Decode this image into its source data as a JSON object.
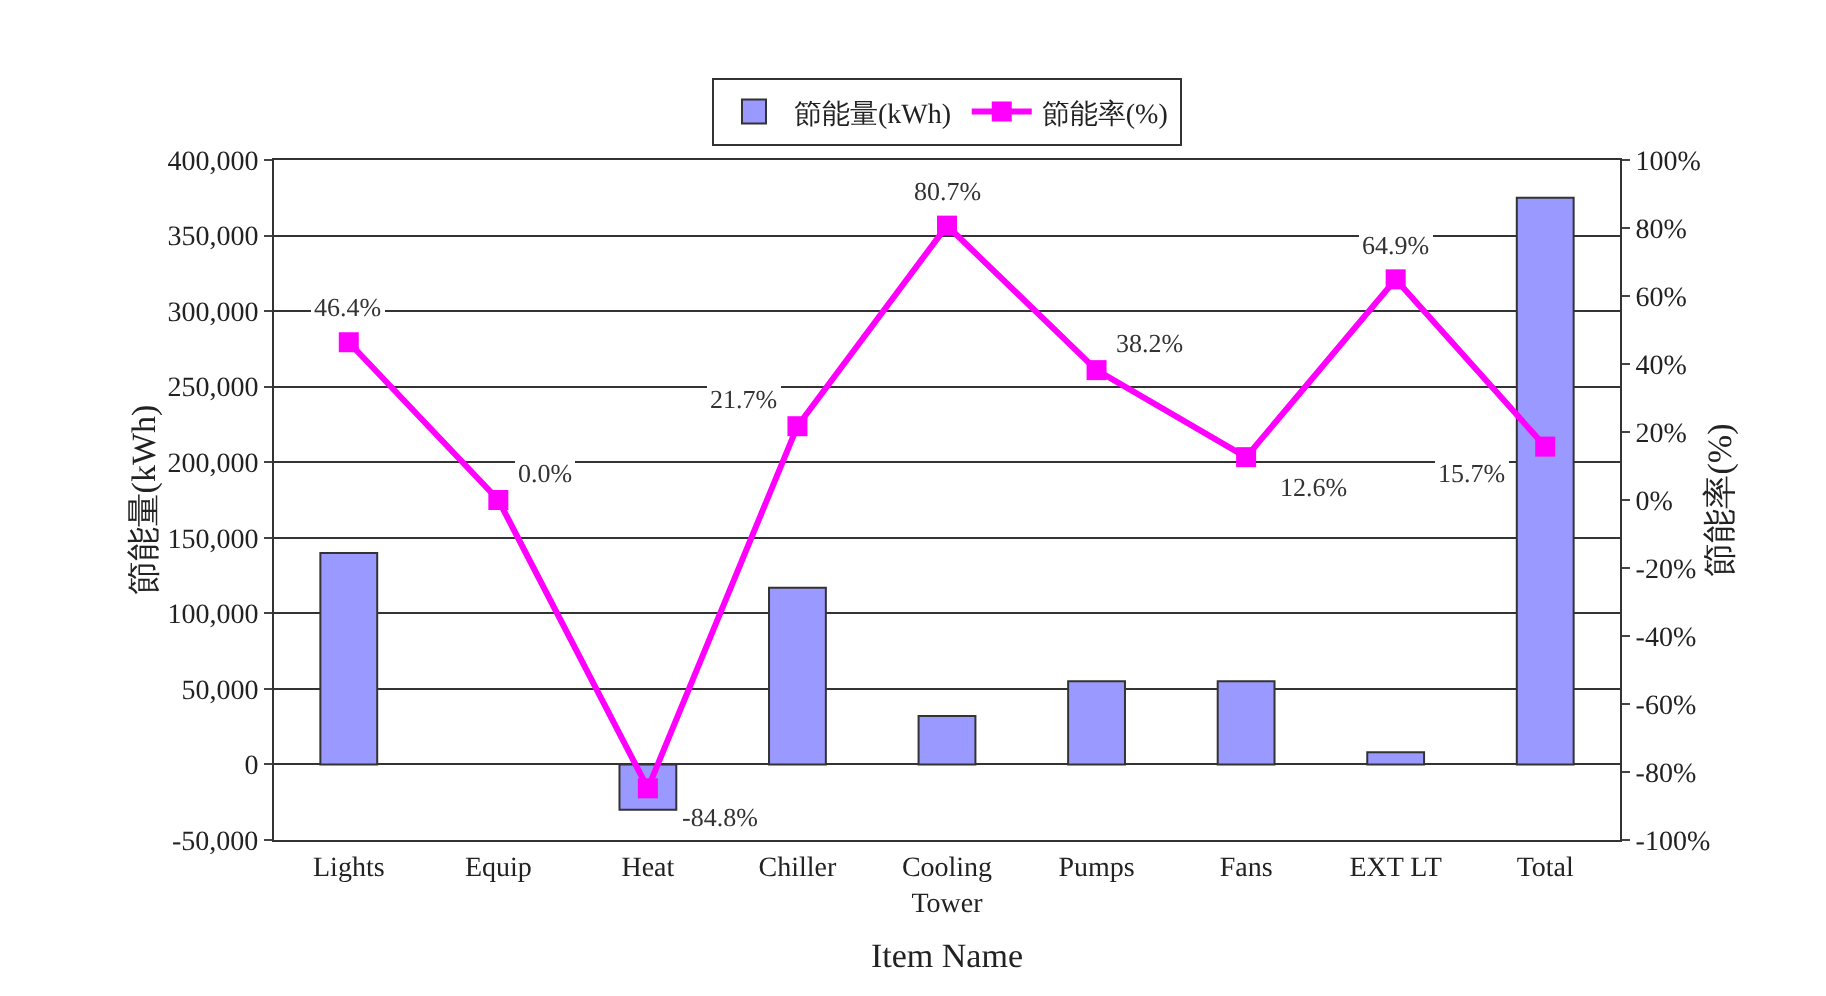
{
  "chart_data": {
    "type": "bar",
    "xlabel": "Item Name",
    "ylabel": "節能量(kWh)",
    "y2label": "節能率(%)",
    "categories": [
      "Lights",
      "Equip",
      "Heat",
      "Chiller",
      "Cooling Tower",
      "Pumps",
      "Fans",
      "EXT LT",
      "Total"
    ],
    "series": [
      {
        "name": "節能量(kWh)",
        "color": "#9999ff",
        "values": [
          140000,
          0,
          -30000,
          117000,
          32000,
          55000,
          55000,
          8000,
          375000
        ]
      },
      {
        "name": "節能率(%)",
        "type": "line",
        "axis": "y2",
        "color": "#ff00ff",
        "marker": "square",
        "values": [
          46.4,
          0.0,
          -84.8,
          21.7,
          80.7,
          38.2,
          12.6,
          64.9,
          15.7
        ],
        "value_labels": [
          "46.4%",
          "0.0%",
          "-84.8%",
          "21.7%",
          "80.7%",
          "38.2%",
          "12.6%",
          "64.9%",
          "15.7%"
        ]
      }
    ],
    "ylim": [
      -50000,
      400000
    ],
    "yticks": [
      {
        "value": -50000,
        "label": "-50,000"
      },
      {
        "value": 0,
        "label": "0"
      },
      {
        "value": 50000,
        "label": "50,000"
      },
      {
        "value": 100000,
        "label": "100,000"
      },
      {
        "value": 150000,
        "label": "150,000"
      },
      {
        "value": 200000,
        "label": "200,000"
      },
      {
        "value": 250000,
        "label": "250,000"
      },
      {
        "value": 300000,
        "label": "300,000"
      },
      {
        "value": 350000,
        "label": "350,000"
      },
      {
        "value": 400000,
        "label": "400,000"
      }
    ],
    "y2lim": [
      -100,
      100
    ],
    "y2ticks": [
      {
        "value": -100,
        "label": "-100%"
      },
      {
        "value": -80,
        "label": "-80%"
      },
      {
        "value": -60,
        "label": "-60%"
      },
      {
        "value": -40,
        "label": "-40%"
      },
      {
        "value": -20,
        "label": "-20%"
      },
      {
        "value": 0,
        "label": "0%"
      },
      {
        "value": 20,
        "label": "20%"
      },
      {
        "value": 40,
        "label": "40%"
      },
      {
        "value": 60,
        "label": "60%"
      },
      {
        "value": 80,
        "label": "80%"
      },
      {
        "value": 100,
        "label": "100%"
      }
    ],
    "grid": "y",
    "legend": "top"
  }
}
